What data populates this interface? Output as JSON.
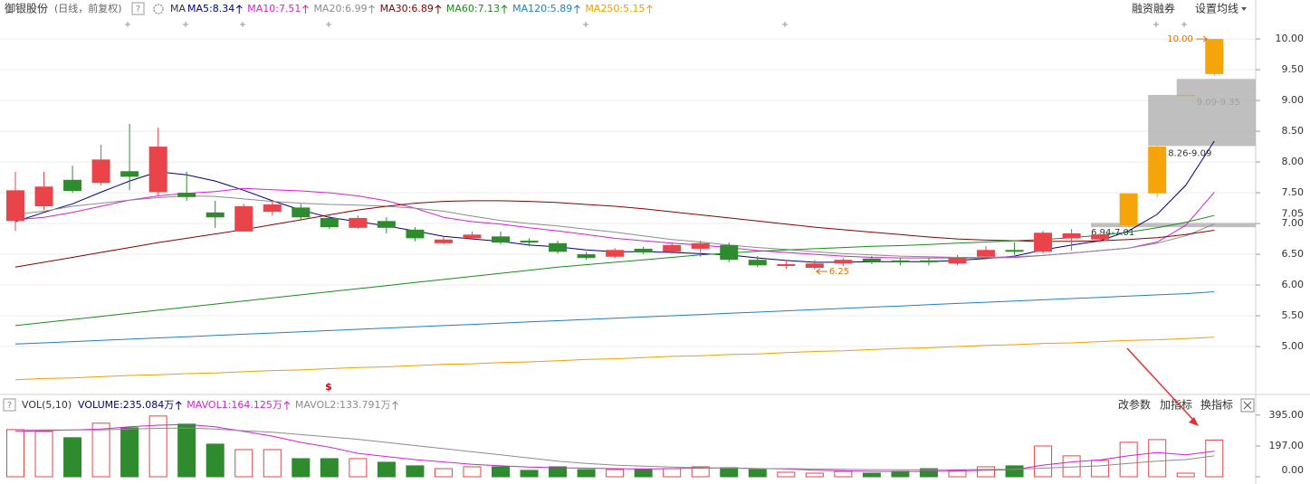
{
  "header": {
    "stock": "御银股份",
    "period": "(日线，前复权)",
    "help": "?",
    "buttons": [
      "融资融券",
      "设置均线"
    ]
  },
  "volume_toolbar": {
    "help": "?",
    "buttons": [
      "改参数",
      "加指标",
      "换指标"
    ]
  },
  "chart_data": [
    {
      "type": "candlestick",
      "ma_label": "MA",
      "up_color": "#e8444a",
      "down_color": "#2e8b2e",
      "limit_up_color": "#f5a50a",
      "ylim": [
        4.28,
        10.31
      ],
      "yticks": [
        {
          "value": 10,
          "label": "10.00"
        },
        {
          "value": 9.5,
          "label": "9.50"
        },
        {
          "value": 9,
          "label": "9.00"
        },
        {
          "value": 8.5,
          "label": "8.50"
        },
        {
          "value": 8,
          "label": "8.00"
        },
        {
          "value": 7.5,
          "label": "7.50"
        },
        {
          "value": 7,
          "label": "7.00"
        },
        {
          "value": 6.5,
          "label": "6.50"
        },
        {
          "value": 6,
          "label": "6.00"
        },
        {
          "value": 5.5,
          "label": "5.50"
        },
        {
          "value": 5,
          "label": "5.00"
        }
      ],
      "grid": true,
      "last_price": 7.05,
      "event_marker": "$",
      "candles": [
        {
          "open": 7.04,
          "high": 7.84,
          "low": 6.88,
          "close": 7.54
        },
        {
          "open": 7.28,
          "high": 7.84,
          "low": 7.22,
          "close": 7.6
        },
        {
          "open": 7.71,
          "high": 7.94,
          "low": 7.5,
          "close": 7.53
        },
        {
          "open": 7.66,
          "high": 8.28,
          "low": 7.62,
          "close": 8.04
        },
        {
          "open": 7.85,
          "high": 8.62,
          "low": 7.54,
          "close": 7.76
        },
        {
          "open": 7.51,
          "high": 8.56,
          "low": 7.46,
          "close": 8.25
        },
        {
          "open": 7.5,
          "high": 7.84,
          "low": 7.37,
          "close": 7.43
        },
        {
          "open": 7.18,
          "high": 7.37,
          "low": 6.93,
          "close": 7.1
        },
        {
          "open": 6.87,
          "high": 7.32,
          "low": 6.87,
          "close": 7.28
        },
        {
          "open": 7.19,
          "high": 7.37,
          "low": 7.13,
          "close": 7.31
        },
        {
          "open": 7.26,
          "high": 7.32,
          "low": 7.07,
          "close": 7.1
        },
        {
          "open": 7.09,
          "high": 7.13,
          "low": 6.91,
          "close": 6.94
        },
        {
          "open": 6.93,
          "high": 7.13,
          "low": 6.91,
          "close": 7.09
        },
        {
          "open": 7.04,
          "high": 7.1,
          "low": 6.84,
          "close": 6.93
        },
        {
          "open": 6.9,
          "high": 6.94,
          "low": 6.71,
          "close": 6.76
        },
        {
          "open": 6.68,
          "high": 6.78,
          "low": 6.66,
          "close": 6.74
        },
        {
          "open": 6.76,
          "high": 6.87,
          "low": 6.74,
          "close": 6.82
        },
        {
          "open": 6.79,
          "high": 6.87,
          "low": 6.66,
          "close": 6.69
        },
        {
          "open": 6.72,
          "high": 6.76,
          "low": 6.63,
          "close": 6.69
        },
        {
          "open": 6.68,
          "high": 6.72,
          "low": 6.51,
          "close": 6.54
        },
        {
          "open": 6.5,
          "high": 6.54,
          "low": 6.41,
          "close": 6.44
        },
        {
          "open": 6.46,
          "high": 6.6,
          "low": 6.43,
          "close": 6.57
        },
        {
          "open": 6.59,
          "high": 6.62,
          "low": 6.5,
          "close": 6.53
        },
        {
          "open": 6.54,
          "high": 6.69,
          "low": 6.51,
          "close": 6.65
        },
        {
          "open": 6.59,
          "high": 6.72,
          "low": 6.46,
          "close": 6.68
        },
        {
          "open": 6.65,
          "high": 6.69,
          "low": 6.37,
          "close": 6.41
        },
        {
          "open": 6.41,
          "high": 6.47,
          "low": 6.29,
          "close": 6.32
        },
        {
          "open": 6.31,
          "high": 6.41,
          "low": 6.26,
          "close": 6.34
        },
        {
          "open": 6.28,
          "high": 6.41,
          "low": 6.25,
          "close": 6.35
        },
        {
          "open": 6.35,
          "high": 6.44,
          "low": 6.31,
          "close": 6.41
        },
        {
          "open": 6.43,
          "high": 6.47,
          "low": 6.34,
          "close": 6.38
        },
        {
          "open": 6.4,
          "high": 6.44,
          "low": 6.32,
          "close": 6.37
        },
        {
          "open": 6.4,
          "high": 6.44,
          "low": 6.32,
          "close": 6.37
        },
        {
          "open": 6.35,
          "high": 6.49,
          "low": 6.32,
          "close": 6.44
        },
        {
          "open": 6.46,
          "high": 6.63,
          "low": 6.41,
          "close": 6.57
        },
        {
          "open": 6.57,
          "high": 6.69,
          "low": 6.49,
          "close": 6.54
        },
        {
          "open": 6.54,
          "high": 6.88,
          "low": 6.51,
          "close": 6.85
        },
        {
          "open": 6.76,
          "high": 6.91,
          "low": 6.56,
          "close": 6.84
        },
        {
          "open": 6.74,
          "high": 6.85,
          "low": 6.69,
          "close": 6.82
        },
        {
          "open": 6.97,
          "high": 7.49,
          "low": 6.94,
          "close": 7.49,
          "limit_up": true
        },
        {
          "open": 7.49,
          "high": 8.26,
          "low": 7.43,
          "close": 8.25,
          "limit_up": true
        },
        {
          "open": 9.09,
          "high": 9.09,
          "low": 9.09,
          "close": 9.09,
          "limit_up": true
        },
        {
          "open": 9.43,
          "high": 10,
          "low": 9.4,
          "close": 10,
          "limit_up": true
        }
      ],
      "price_marks": [
        {
          "label": "10.00",
          "value": 10
        },
        {
          "label": "6.25",
          "value": 6.25
        }
      ],
      "gap_zones": [
        {
          "label": "9.09-9.35",
          "low": 9.09,
          "high": 9.35
        },
        {
          "label": "8.26-9.09",
          "low": 8.26,
          "high": 9.09
        },
        {
          "label": "6.94-7.01",
          "low": 6.94,
          "high": 7.01
        }
      ],
      "series": [
        {
          "name": "MA5:8.34",
          "color": "#000080",
          "values": [
            7.03,
            7.18,
            7.32,
            7.51,
            7.69,
            7.84,
            7.79,
            7.69,
            7.54,
            7.37,
            7.22,
            7.1,
            7.03,
            6.96,
            6.88,
            6.79,
            6.75,
            6.71,
            6.65,
            6.62,
            6.57,
            6.54,
            6.54,
            6.53,
            6.51,
            6.49,
            6.44,
            6.4,
            6.37,
            6.37,
            6.38,
            6.38,
            6.38,
            6.4,
            6.43,
            6.47,
            6.57,
            6.65,
            6.72,
            6.88,
            7.15,
            7.62,
            8.34
          ]
        },
        {
          "name": "MA10:7.51",
          "color": "#d81ed8",
          "values": [
            7.06,
            7.1,
            7.18,
            7.28,
            7.38,
            7.45,
            7.49,
            7.52,
            7.57,
            7.55,
            7.53,
            7.5,
            7.45,
            7.37,
            7.25,
            7.1,
            7.03,
            6.99,
            6.93,
            6.88,
            6.82,
            6.76,
            6.72,
            6.68,
            6.65,
            6.61,
            6.56,
            6.53,
            6.5,
            6.47,
            6.45,
            6.44,
            6.44,
            6.44,
            6.44,
            6.45,
            6.48,
            6.52,
            6.56,
            6.6,
            6.7,
            6.97,
            7.51
          ]
        },
        {
          "name": "MA20:6.99",
          "color": "#8c8c8c",
          "values": [
            7.15,
            7.2,
            7.28,
            7.33,
            7.38,
            7.42,
            7.45,
            7.44,
            7.4,
            7.36,
            7.33,
            7.31,
            7.3,
            7.28,
            7.25,
            7.2,
            7.12,
            7.05,
            7,
            6.96,
            6.91,
            6.86,
            6.8,
            6.74,
            6.7,
            6.65,
            6.61,
            6.58,
            6.54,
            6.51,
            6.49,
            6.47,
            6.46,
            6.45,
            6.45,
            6.46,
            6.48,
            6.52,
            6.56,
            6.6,
            6.68,
            6.8,
            6.99
          ]
        },
        {
          "name": "MA30:6.89",
          "color": "#8b0000",
          "values": [
            6.29,
            6.37,
            6.45,
            6.53,
            6.61,
            6.69,
            6.76,
            6.83,
            6.9,
            6.98,
            7.06,
            7.14,
            7.22,
            7.28,
            7.33,
            7.36,
            7.37,
            7.37,
            7.36,
            7.34,
            7.31,
            7.28,
            7.24,
            7.19,
            7.14,
            7.09,
            7.04,
            6.99,
            6.94,
            6.9,
            6.86,
            6.82,
            6.78,
            6.75,
            6.73,
            6.72,
            6.71,
            6.71,
            6.72,
            6.74,
            6.77,
            6.82,
            6.89
          ]
        },
        {
          "name": "MA60:7.13",
          "color": "#1a8c1a",
          "values": [
            5.34,
            5.39,
            5.44,
            5.49,
            5.54,
            5.59,
            5.64,
            5.69,
            5.74,
            5.79,
            5.84,
            5.89,
            5.94,
            5.99,
            6.04,
            6.09,
            6.14,
            6.19,
            6.24,
            6.29,
            6.33,
            6.37,
            6.41,
            6.45,
            6.49,
            6.52,
            6.55,
            6.57,
            6.59,
            6.61,
            6.63,
            6.64,
            6.66,
            6.68,
            6.7,
            6.72,
            6.74,
            6.77,
            6.81,
            6.86,
            6.93,
            7.02,
            7.13
          ]
        },
        {
          "name": "MA120:5.89",
          "color": "#1e7fc8",
          "values": [
            5.04,
            5.06,
            5.08,
            5.1,
            5.12,
            5.14,
            5.16,
            5.18,
            5.2,
            5.22,
            5.24,
            5.26,
            5.28,
            5.3,
            5.32,
            5.34,
            5.36,
            5.38,
            5.4,
            5.42,
            5.44,
            5.46,
            5.48,
            5.5,
            5.52,
            5.54,
            5.56,
            5.58,
            5.6,
            5.62,
            5.64,
            5.66,
            5.68,
            5.7,
            5.72,
            5.74,
            5.76,
            5.78,
            5.8,
            5.82,
            5.84,
            5.86,
            5.89
          ]
        },
        {
          "name": "MA250:5.15",
          "color": "#f0a000",
          "values": [
            4.46,
            4.48,
            4.49,
            4.51,
            4.53,
            4.54,
            4.56,
            4.57,
            4.59,
            4.61,
            4.62,
            4.64,
            4.66,
            4.67,
            4.69,
            4.71,
            4.72,
            4.74,
            4.75,
            4.77,
            4.79,
            4.8,
            4.82,
            4.84,
            4.85,
            4.87,
            4.88,
            4.9,
            4.92,
            4.93,
            4.95,
            4.97,
            4.98,
            5,
            5.02,
            5.03,
            5.05,
            5.06,
            5.08,
            5.1,
            5.11,
            5.13,
            5.15
          ]
        }
      ]
    },
    {
      "type": "bar",
      "title": "VOL(5,10)",
      "ylim": [
        0,
        475
      ],
      "yticks": [
        {
          "value": 395,
          "label": "395.00"
        },
        {
          "value": 197,
          "label": "197.00"
        },
        {
          "value": 0,
          "label": "0.00"
        }
      ],
      "series": [
        {
          "name": "VOLUME:235.084万",
          "color": "#000080",
          "values": [
            302,
            290,
            250,
            343,
            314,
            389,
            337,
            209,
            174,
            174,
            116,
            116,
            116,
            93,
            70,
            52,
            64,
            64,
            41,
            64,
            46,
            46,
            46,
            52,
            64,
            58,
            46,
            29,
            23,
            35,
            23,
            35,
            52,
            41,
            64,
            70,
            197,
            134,
            105,
            221,
            238,
            23,
            235.084
          ]
        },
        {
          "name": "MAVOL1:164.125万",
          "type": "line",
          "color": "#d81ed8",
          "values": [
            290,
            295,
            300,
            305,
            320,
            330,
            335,
            320,
            290,
            260,
            220,
            190,
            150,
            130,
            110,
            95,
            80,
            70,
            62,
            58,
            55,
            52,
            50,
            52,
            55,
            56,
            53,
            50,
            42,
            38,
            35,
            33,
            35,
            37,
            42,
            45,
            75,
            95,
            108,
            135,
            155,
            140,
            164.125
          ]
        },
        {
          "name": "MAVOL2:133.791万",
          "type": "line",
          "color": "#8c8c8c",
          "values": [
            300,
            300,
            300,
            300,
            305,
            310,
            312,
            305,
            295,
            285,
            270,
            255,
            240,
            220,
            200,
            180,
            160,
            140,
            120,
            100,
            85,
            75,
            68,
            62,
            58,
            55,
            52,
            52,
            50,
            48,
            46,
            45,
            45,
            45,
            47,
            48,
            55,
            62,
            70,
            85,
            100,
            110,
            133.791
          ]
        }
      ]
    }
  ]
}
